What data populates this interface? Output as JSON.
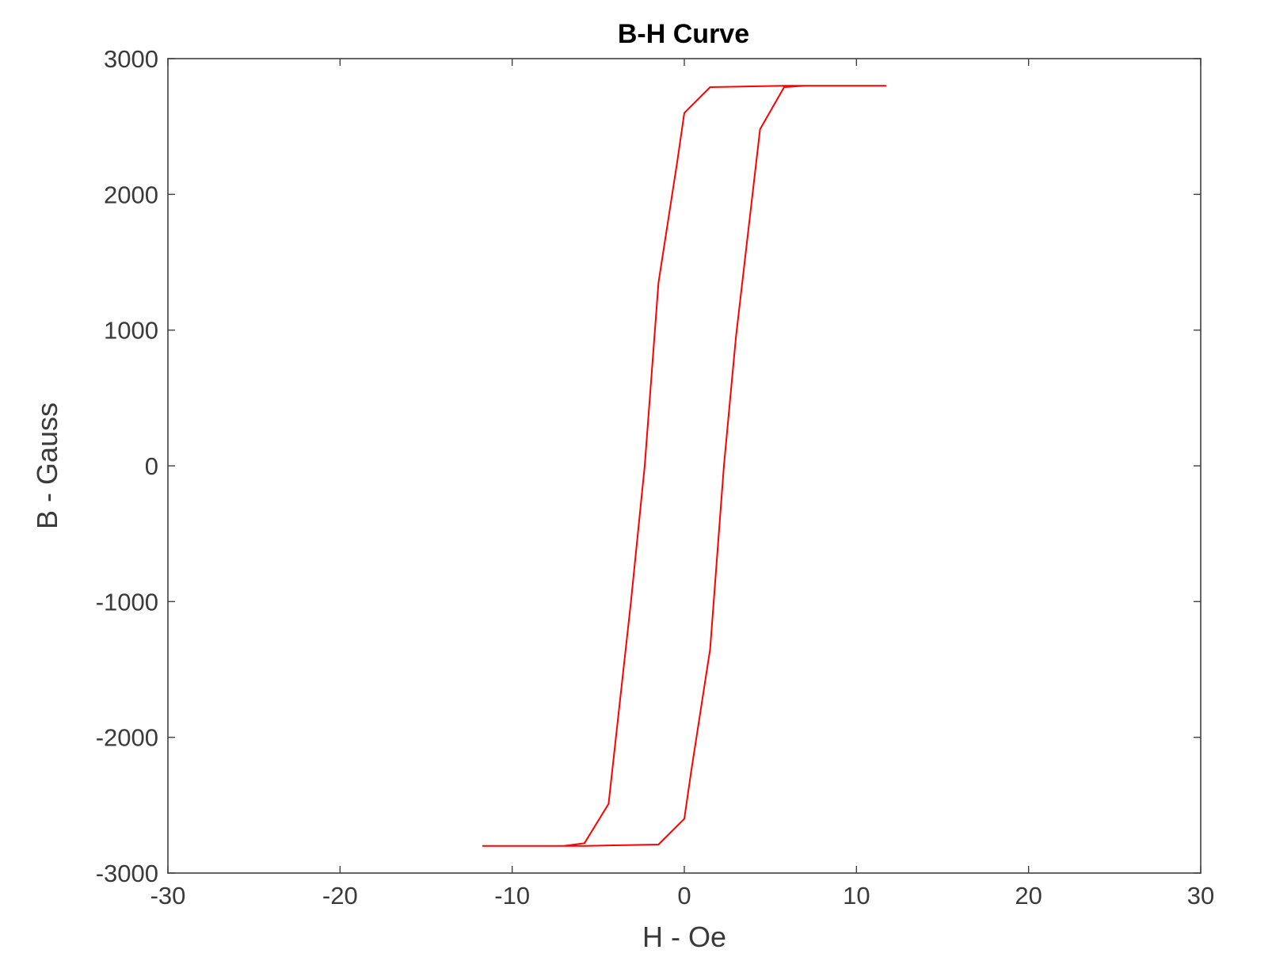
{
  "chart_data": {
    "type": "line",
    "title": "B-H Curve",
    "xlabel": "H - Oe",
    "ylabel": "B - Gauss",
    "xlim": [
      -30,
      30
    ],
    "ylim": [
      -3000,
      3000
    ],
    "xticks": [
      -30,
      -20,
      -10,
      0,
      10,
      20,
      30
    ],
    "yticks": [
      -3000,
      -2000,
      -1000,
      0,
      1000,
      2000,
      3000
    ],
    "xtick_labels": [
      "-30",
      "-20",
      "-10",
      "0",
      "10",
      "20",
      "30"
    ],
    "ytick_labels": [
      "-3000",
      "-2000",
      "-1000",
      "0",
      "1000",
      "2000",
      "3000"
    ],
    "grid": false,
    "legend": "none",
    "series": [
      {
        "color": "#ff0000",
        "x": [
          -11.7,
          -7.0,
          -5.8,
          -4.4,
          -3.1,
          -2.3,
          -1.5,
          -0.4,
          0.0,
          1.5,
          5.8,
          11.7,
          7.0,
          5.8,
          4.4,
          3.0,
          2.3,
          1.5,
          0.4,
          0.0,
          -1.5,
          -5.8,
          -11.7
        ],
        "y": [
          -2800,
          -2800,
          -2780,
          -2490,
          -1000,
          0,
          1350,
          2250,
          2600,
          2790,
          2800,
          2800,
          2800,
          2790,
          2480,
          950,
          0,
          -1350,
          -2250,
          -2600,
          -2790,
          -2800,
          -2800
        ]
      }
    ]
  }
}
